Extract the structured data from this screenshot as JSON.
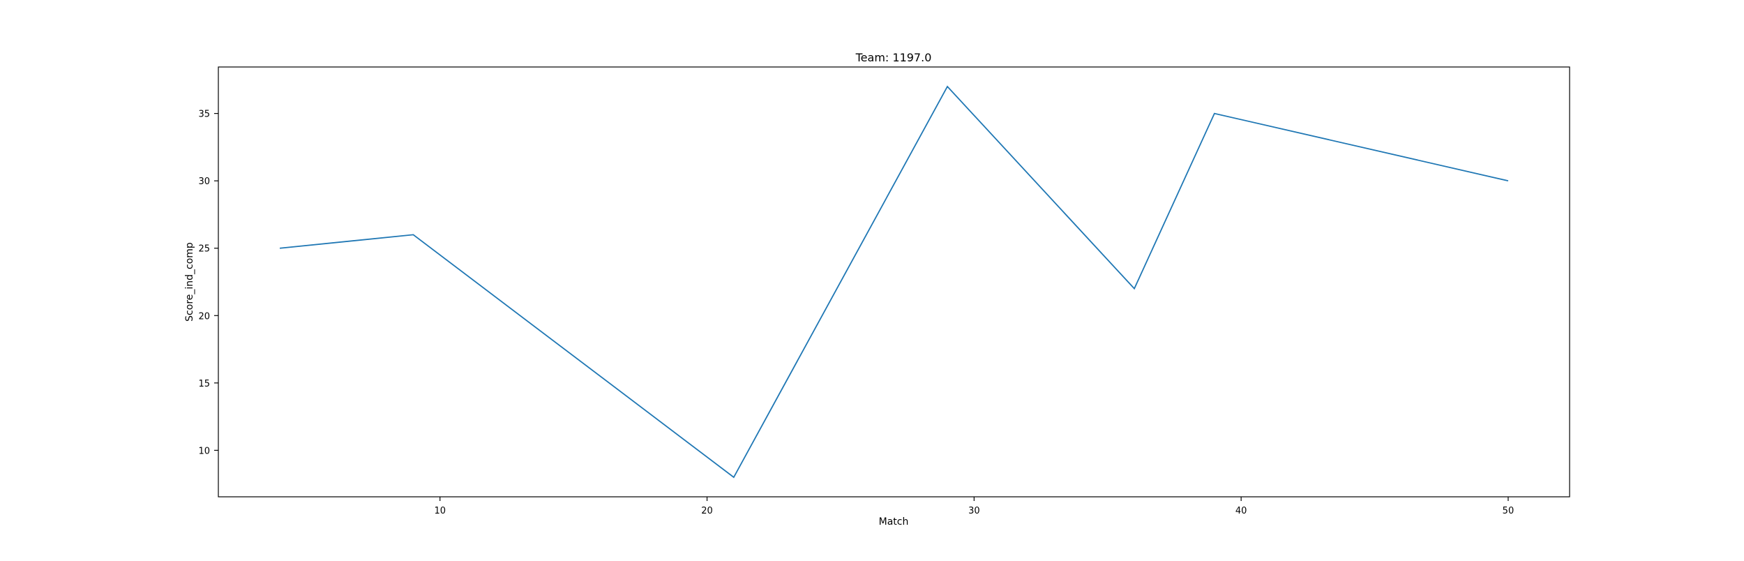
{
  "chart_data": {
    "type": "line",
    "title": "Team: 1197.0",
    "xlabel": "Match",
    "ylabel": "Score_ind_comp",
    "x": [
      4,
      9,
      21,
      29,
      36,
      39,
      50
    ],
    "series": [
      {
        "values": [
          25,
          26,
          8,
          37,
          22,
          35,
          30
        ],
        "color": "#1f77b4"
      }
    ],
    "xlim": [
      1.7,
      52.3
    ],
    "ylim": [
      6.55,
      38.45
    ],
    "xticks": [
      10,
      20,
      30,
      40,
      50
    ],
    "yticks": [
      10,
      15,
      20,
      25,
      30,
      35
    ],
    "grid": false,
    "legend": "none"
  }
}
